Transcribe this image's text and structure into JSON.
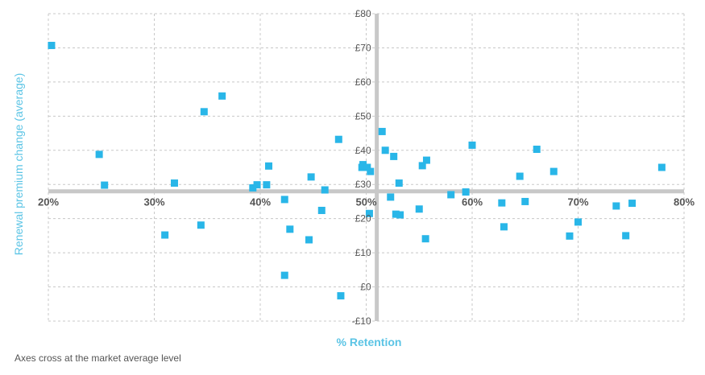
{
  "chart_data": {
    "type": "scatter",
    "xlabel": "% Retention",
    "ylabel": "Renewal premium change (average)",
    "xlim": [
      20,
      80
    ],
    "ylim": [
      -10,
      80
    ],
    "x_ticks": [
      20,
      30,
      40,
      50,
      60,
      70,
      80
    ],
    "x_tick_labels": [
      "20%",
      "30%",
      "40%",
      "50%",
      "60%",
      "70%",
      "80%"
    ],
    "y_ticks": [
      -10,
      0,
      10,
      20,
      30,
      40,
      50,
      60,
      70,
      80
    ],
    "y_tick_labels": [
      "-£10",
      "£0",
      "£10",
      "£20",
      "£30",
      "£40",
      "£50",
      "£60",
      "£70",
      "£80"
    ],
    "axes_cross": {
      "x": 51,
      "y": 28
    },
    "grid": true,
    "marker": "square",
    "colors": {
      "marker": "#29b6e8",
      "axis_title": "#5bc4e5",
      "grid": "#c8c8c8",
      "cross_axes": "#c8c8c8",
      "tick_text": "#555555"
    },
    "points": [
      {
        "x": 20.3,
        "y": 70.7
      },
      {
        "x": 24.8,
        "y": 38.8
      },
      {
        "x": 25.3,
        "y": 29.8
      },
      {
        "x": 31.0,
        "y": 15.2
      },
      {
        "x": 31.9,
        "y": 30.4
      },
      {
        "x": 34.4,
        "y": 18.1
      },
      {
        "x": 34.7,
        "y": 51.3
      },
      {
        "x": 36.4,
        "y": 55.9
      },
      {
        "x": 39.3,
        "y": 29.0
      },
      {
        "x": 39.7,
        "y": 29.9
      },
      {
        "x": 40.6,
        "y": 29.9
      },
      {
        "x": 40.8,
        "y": 35.4
      },
      {
        "x": 42.3,
        "y": 25.6
      },
      {
        "x": 42.3,
        "y": 3.4
      },
      {
        "x": 42.8,
        "y": 16.9
      },
      {
        "x": 44.6,
        "y": 13.8
      },
      {
        "x": 44.8,
        "y": 32.2
      },
      {
        "x": 45.8,
        "y": 22.4
      },
      {
        "x": 46.1,
        "y": 28.4
      },
      {
        "x": 47.4,
        "y": 43.2
      },
      {
        "x": 47.6,
        "y": -2.6
      },
      {
        "x": 49.6,
        "y": 35.0
      },
      {
        "x": 49.7,
        "y": 35.8
      },
      {
        "x": 50.1,
        "y": 35.0
      },
      {
        "x": 50.3,
        "y": 21.5
      },
      {
        "x": 50.4,
        "y": 33.8
      },
      {
        "x": 51.5,
        "y": 45.5
      },
      {
        "x": 51.8,
        "y": 40.0
      },
      {
        "x": 52.3,
        "y": 26.3
      },
      {
        "x": 52.6,
        "y": 38.2
      },
      {
        "x": 52.8,
        "y": 21.3
      },
      {
        "x": 53.1,
        "y": 30.4
      },
      {
        "x": 53.2,
        "y": 21.1
      },
      {
        "x": 55.0,
        "y": 22.8
      },
      {
        "x": 55.3,
        "y": 35.5
      },
      {
        "x": 55.6,
        "y": 14.1
      },
      {
        "x": 55.7,
        "y": 37.1
      },
      {
        "x": 58.0,
        "y": 27.0
      },
      {
        "x": 59.4,
        "y": 27.8
      },
      {
        "x": 60.0,
        "y": 41.5
      },
      {
        "x": 62.8,
        "y": 24.6
      },
      {
        "x": 63.0,
        "y": 17.6
      },
      {
        "x": 64.5,
        "y": 32.4
      },
      {
        "x": 65.0,
        "y": 25.0
      },
      {
        "x": 66.1,
        "y": 40.3
      },
      {
        "x": 67.7,
        "y": 33.8
      },
      {
        "x": 69.2,
        "y": 14.9
      },
      {
        "x": 70.0,
        "y": 19.0
      },
      {
        "x": 73.6,
        "y": 23.7
      },
      {
        "x": 74.5,
        "y": 15.0
      },
      {
        "x": 75.1,
        "y": 24.5
      },
      {
        "x": 77.9,
        "y": 35.0
      }
    ]
  },
  "footnote": "Axes cross at the market average level"
}
